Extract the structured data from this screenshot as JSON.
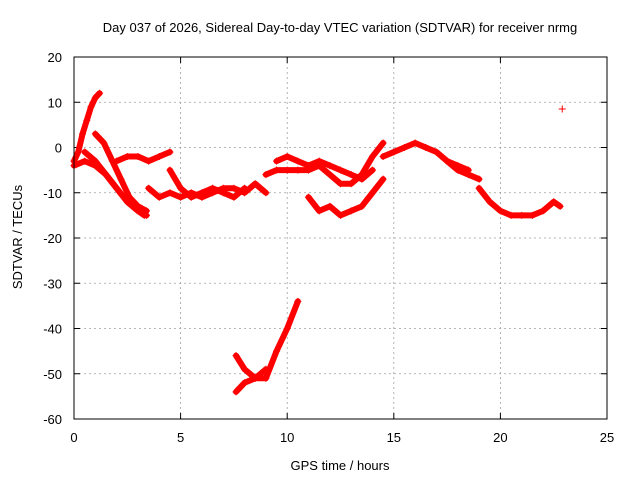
{
  "chart_data": {
    "type": "scatter",
    "title": "Day 037 of 2026, Sidereal Day-to-day VTEC variation (SDTVAR) for receiver nrmg",
    "xlabel": "GPS time / hours",
    "ylabel": "SDTVAR / TECUs",
    "xlim": [
      0,
      25
    ],
    "ylim": [
      -60,
      20
    ],
    "x_ticks": [
      0,
      5,
      10,
      15,
      20,
      25
    ],
    "y_ticks": [
      -60,
      -50,
      -40,
      -30,
      -20,
      -10,
      0,
      10,
      20
    ],
    "grid": true,
    "legend": "none",
    "marker": "+",
    "color": "#ff0000",
    "series": [
      {
        "x": [
          0,
          0.2,
          0.4,
          0.6,
          0.8,
          1.0,
          1.2
        ],
        "y": [
          -3,
          -1,
          3,
          6,
          9,
          11,
          12
        ]
      },
      {
        "x": [
          0,
          0.5,
          1.0,
          1.5,
          2.0,
          2.5,
          3.0,
          3.4
        ],
        "y": [
          -4,
          -3,
          -4,
          -6,
          -9,
          -12,
          -14,
          -15
        ]
      },
      {
        "x": [
          0.5,
          1.0,
          1.5,
          2.0,
          2.5,
          3.0,
          3.3
        ],
        "y": [
          -1,
          -3,
          -6,
          -9,
          -12,
          -14,
          -15
        ]
      },
      {
        "x": [
          1.0,
          1.4,
          1.8,
          2.2,
          2.6,
          3.0,
          3.4
        ],
        "y": [
          3,
          1,
          -3,
          -7,
          -11,
          -13,
          -14
        ]
      },
      {
        "x": [
          2.0,
          2.5,
          3.0,
          3.5,
          4.0,
          4.5
        ],
        "y": [
          -3,
          -2,
          -2,
          -3,
          -2,
          -1
        ]
      },
      {
        "x": [
          3.5,
          4.0,
          4.5,
          5.0,
          5.5,
          6.0,
          6.5,
          7.0,
          7.5,
          8.0,
          8.5,
          9.0
        ],
        "y": [
          -9,
          -11,
          -10,
          -11,
          -10,
          -11,
          -10,
          -9,
          -9,
          -10,
          -8,
          -10
        ]
      },
      {
        "x": [
          4.5,
          5.0,
          5.5,
          6.0,
          6.5,
          7.0,
          7.5,
          8.0
        ],
        "y": [
          -5,
          -9,
          -11,
          -10,
          -9,
          -10,
          -11,
          -9
        ]
      },
      {
        "x": [
          9.0,
          9.5,
          10.0,
          10.5,
          11.0,
          11.5,
          12.0,
          12.5,
          13.0,
          13.5,
          14.0,
          14.5
        ],
        "y": [
          -6,
          -5,
          -5,
          -5,
          -5,
          -4,
          -6,
          -8,
          -8,
          -6,
          -2,
          1
        ]
      },
      {
        "x": [
          9.5,
          10.0,
          10.5,
          11.0,
          11.5,
          12.0,
          12.5,
          13.0,
          13.5,
          14.0
        ],
        "y": [
          -3,
          -2,
          -3,
          -4,
          -3,
          -4,
          -5,
          -6,
          -7,
          -5
        ]
      },
      {
        "x": [
          11.0,
          11.5,
          12.0,
          12.5,
          13.0,
          13.5,
          14.0,
          14.5
        ],
        "y": [
          -11,
          -14,
          -13,
          -15,
          -14,
          -13,
          -10,
          -7
        ]
      },
      {
        "x": [
          7.6,
          8.0,
          8.5,
          9.0,
          9.5,
          10.0,
          10.5
        ],
        "y": [
          -46,
          -49,
          -51,
          -51,
          -45,
          -40,
          -34
        ]
      },
      {
        "x": [
          7.6,
          8.0,
          8.5,
          9.0
        ],
        "y": [
          -54,
          -52,
          -51,
          -49
        ]
      },
      {
        "x": [
          14.5,
          15.0,
          15.5,
          16.0,
          16.5,
          17.0,
          17.5,
          18.0,
          18.5
        ],
        "y": [
          -2,
          -1,
          0,
          1,
          0,
          -1,
          -3,
          -4,
          -5
        ]
      },
      {
        "x": [
          17.5,
          18.0,
          18.5,
          19.0
        ],
        "y": [
          -3,
          -5,
          -6,
          -7
        ]
      },
      {
        "x": [
          19.0,
          19.5,
          20.0,
          20.5,
          21.0,
          21.5,
          22.0,
          22.5,
          22.8
        ],
        "y": [
          -9,
          -12,
          -14,
          -15,
          -15,
          -15,
          -14,
          -12,
          -13
        ]
      },
      {
        "x": [
          22.9
        ],
        "y": [
          8.5
        ]
      }
    ]
  }
}
